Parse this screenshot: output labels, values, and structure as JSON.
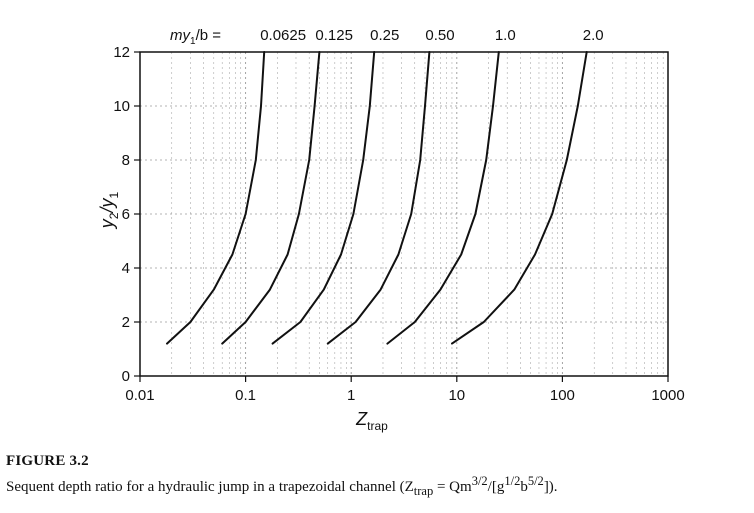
{
  "chart_data": {
    "type": "line",
    "x_axis": {
      "scale": "log",
      "range": [
        0.01,
        1000
      ],
      "ticks": [
        0.01,
        0.1,
        1,
        10,
        100,
        1000
      ],
      "tick_labels": [
        "0.01",
        "0.1",
        "1",
        "10",
        "100",
        "1000"
      ],
      "label_main": "Z",
      "label_sub": "trap"
    },
    "y_axis": {
      "scale": "linear",
      "range": [
        0,
        12
      ],
      "ticks": [
        0,
        2,
        4,
        6,
        8,
        10,
        12
      ],
      "tick_labels": [
        "0",
        "2",
        "4",
        "6",
        "8",
        "10",
        "12"
      ],
      "label_main": "y",
      "label_sub1": "2",
      "label_mid": "/y",
      "label_sub2": "1"
    },
    "grid": true,
    "legend": "curve labels along top",
    "parameter_label": {
      "prefix": "my",
      "sub": "1",
      "suffix": "/b = "
    },
    "series": [
      {
        "name": "0.0625",
        "points": [
          [
            0.018,
            1.2
          ],
          [
            0.03,
            2.0
          ],
          [
            0.05,
            3.2
          ],
          [
            0.075,
            4.5
          ],
          [
            0.1,
            6.0
          ],
          [
            0.125,
            8.0
          ],
          [
            0.14,
            10.0
          ],
          [
            0.15,
            12.0
          ]
        ]
      },
      {
        "name": "0.125",
        "points": [
          [
            0.06,
            1.2
          ],
          [
            0.1,
            2.0
          ],
          [
            0.17,
            3.2
          ],
          [
            0.25,
            4.5
          ],
          [
            0.32,
            6.0
          ],
          [
            0.4,
            8.0
          ],
          [
            0.45,
            10.0
          ],
          [
            0.5,
            12.0
          ]
        ]
      },
      {
        "name": "0.25",
        "points": [
          [
            0.18,
            1.2
          ],
          [
            0.33,
            2.0
          ],
          [
            0.55,
            3.2
          ],
          [
            0.8,
            4.5
          ],
          [
            1.05,
            6.0
          ],
          [
            1.3,
            8.0
          ],
          [
            1.5,
            10.0
          ],
          [
            1.65,
            12.0
          ]
        ]
      },
      {
        "name": "0.50",
        "points": [
          [
            0.6,
            1.2
          ],
          [
            1.1,
            2.0
          ],
          [
            1.9,
            3.2
          ],
          [
            2.8,
            4.5
          ],
          [
            3.7,
            6.0
          ],
          [
            4.5,
            8.0
          ],
          [
            5.0,
            10.0
          ],
          [
            5.5,
            12.0
          ]
        ]
      },
      {
        "name": "1.0",
        "points": [
          [
            2.2,
            1.2
          ],
          [
            4.0,
            2.0
          ],
          [
            7.0,
            3.2
          ],
          [
            11.0,
            4.5
          ],
          [
            15.0,
            6.0
          ],
          [
            19.0,
            8.0
          ],
          [
            22.0,
            10.0
          ],
          [
            25.0,
            12.0
          ]
        ]
      },
      {
        "name": "2.0",
        "points": [
          [
            9.0,
            1.2
          ],
          [
            18.0,
            2.0
          ],
          [
            35.0,
            3.2
          ],
          [
            55.0,
            4.5
          ],
          [
            80.0,
            6.0
          ],
          [
            110.0,
            8.0
          ],
          [
            140.0,
            10.0
          ],
          [
            170.0,
            12.0
          ]
        ]
      }
    ]
  },
  "caption": {
    "title": "FIGURE 3.2",
    "text": "Sequent depth ratio for a hydraulic jump in a trapezoidal channel (Z",
    "text_sub": "trap",
    "formula_a": " = Qm",
    "formula_b": "3/2",
    "formula_c": "/[g",
    "formula_d": "1/2",
    "formula_e": "b",
    "formula_f": "5/2",
    "formula_g": "])."
  }
}
